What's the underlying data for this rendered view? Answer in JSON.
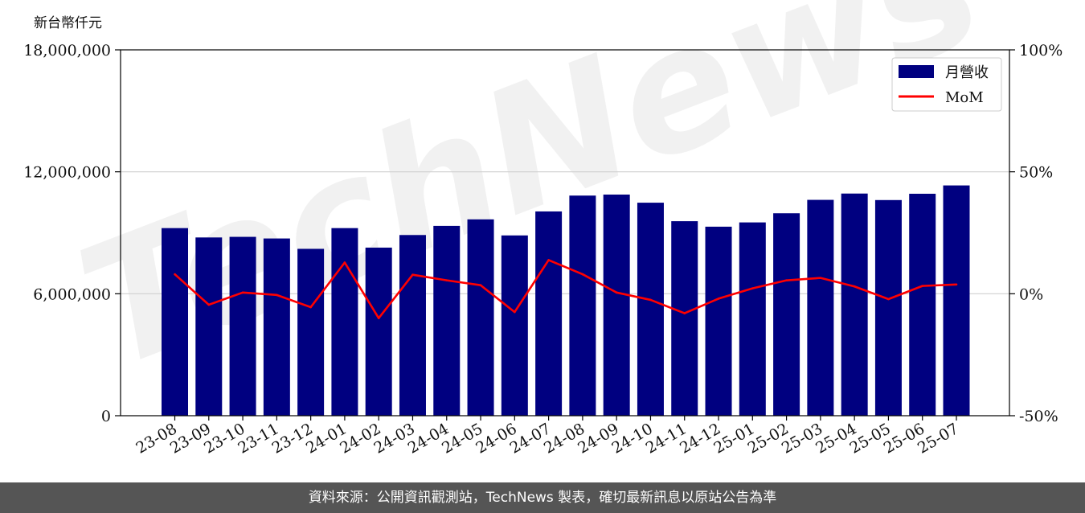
{
  "chart_data": {
    "type": "bar",
    "unit_label": "新台幣仟元",
    "categories": [
      "23-08",
      "23-09",
      "23-10",
      "23-11",
      "23-12",
      "24-01",
      "24-02",
      "24-03",
      "24-04",
      "24-05",
      "24-06",
      "24-07",
      "24-08",
      "24-09",
      "24-10",
      "24-11",
      "24-12",
      "25-01",
      "25-02",
      "25-03",
      "25-04",
      "25-05",
      "25-06",
      "25-07"
    ],
    "series": [
      {
        "name": "月營收",
        "axis": "left",
        "type": "bar",
        "color": "#000080",
        "values": [
          9230000,
          8770000,
          8800000,
          8720000,
          8210000,
          9230000,
          8270000,
          8890000,
          9340000,
          9660000,
          8870000,
          10050000,
          10830000,
          10880000,
          10480000,
          9570000,
          9300000,
          9510000,
          9960000,
          10620000,
          10930000,
          10610000,
          10920000,
          11330000
        ]
      },
      {
        "name": "MoM",
        "axis": "right",
        "type": "line",
        "color": "#ff0000",
        "values": [
          8.0,
          -4.5,
          0.5,
          -0.5,
          -5.5,
          12.8,
          -10.0,
          7.8,
          5.5,
          3.5,
          -7.5,
          13.8,
          8.0,
          0.5,
          -2.5,
          -8.0,
          -2.0,
          2.2,
          5.5,
          6.5,
          3.0,
          -2.2,
          3.2,
          3.8
        ]
      }
    ],
    "y_left": {
      "ticks": [
        "0",
        "6,000,000",
        "12,000,000",
        "18,000,000"
      ],
      "tick_values": [
        0,
        6000000,
        12000000,
        18000000
      ],
      "ylim": [
        0,
        18000000
      ]
    },
    "y_right": {
      "ticks": [
        "-50%",
        "0%",
        "50%",
        "100%"
      ],
      "tick_values": [
        -50,
        0,
        50,
        100
      ],
      "ylim": [
        -50,
        100
      ]
    },
    "grid": "horizontal",
    "legend_position": "top-right"
  },
  "watermark": "TechNews",
  "footer_text": "資料來源：公開資訊觀測站，TechNews 製表，確切最新訊息以原站公告為準"
}
